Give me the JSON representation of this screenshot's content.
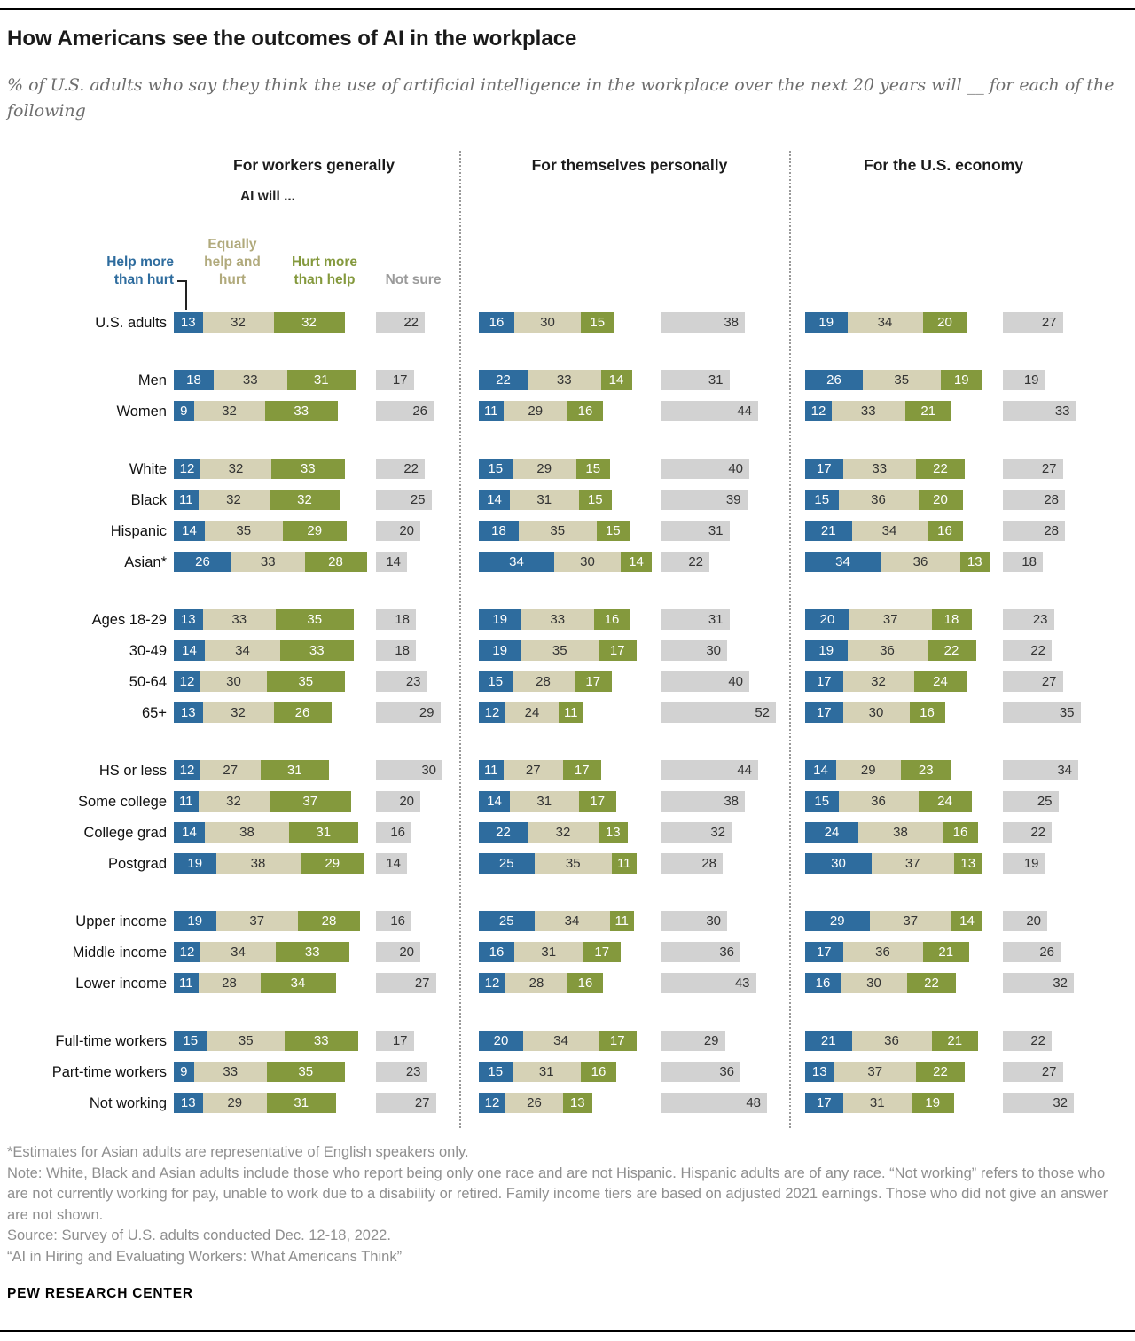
{
  "header": {
    "title": "How Americans see the outcomes of AI in the workplace",
    "subtitle": "% of U.S. adults who say they think the use of artificial intelligence in the workplace over the next 20 years will __ for each of the following"
  },
  "ai_will_label": "AI will ...",
  "legend": [
    {
      "text": "Help more\nthan hurt",
      "color": "#2e6c9e"
    },
    {
      "text": "Equally\nhelp and\nhurt",
      "color": "#b1aa7c"
    },
    {
      "text": "Hurt more\nthan help",
      "color": "#84993d"
    },
    {
      "text": "Not sure",
      "color": "#9a9a9a"
    }
  ],
  "chart_data": {
    "type": "bar",
    "stacked": true,
    "unit": "%",
    "series_labels": [
      "Help more than hurt",
      "Equally help and hurt",
      "Hurt more than help",
      "Not sure"
    ],
    "colors": [
      "#2e6c9e",
      "#d6d2b6",
      "#84993d",
      "#d2d2d2"
    ],
    "row_groups": [
      [
        "U.S. adults"
      ],
      [
        "Men",
        "Women"
      ],
      [
        "White",
        "Black",
        "Hispanic",
        "Asian*"
      ],
      [
        "Ages 18-29",
        "30-49",
        "50-64",
        "65+"
      ],
      [
        "HS or less",
        "Some college",
        "College grad",
        "Postgrad"
      ],
      [
        "Upper income",
        "Middle income",
        "Lower income"
      ],
      [
        "Full-time workers",
        "Part-time workers",
        "Not working"
      ]
    ],
    "panels": [
      {
        "title": "For workers generally",
        "values": [
          [
            13,
            32,
            32,
            22
          ],
          [
            18,
            33,
            31,
            17
          ],
          [
            9,
            32,
            33,
            26
          ],
          [
            12,
            32,
            33,
            22
          ],
          [
            11,
            32,
            32,
            25
          ],
          [
            14,
            35,
            29,
            20
          ],
          [
            26,
            33,
            28,
            14
          ],
          [
            13,
            33,
            35,
            18
          ],
          [
            14,
            34,
            33,
            18
          ],
          [
            12,
            30,
            35,
            23
          ],
          [
            13,
            32,
            26,
            29
          ],
          [
            12,
            27,
            31,
            30
          ],
          [
            11,
            32,
            37,
            20
          ],
          [
            14,
            38,
            31,
            16
          ],
          [
            19,
            38,
            29,
            14
          ],
          [
            19,
            37,
            28,
            16
          ],
          [
            12,
            34,
            33,
            20
          ],
          [
            11,
            28,
            34,
            27
          ],
          [
            15,
            35,
            33,
            17
          ],
          [
            9,
            33,
            35,
            23
          ],
          [
            13,
            29,
            31,
            27
          ]
        ]
      },
      {
        "title": "For themselves personally",
        "values": [
          [
            16,
            30,
            15,
            38
          ],
          [
            22,
            33,
            14,
            31
          ],
          [
            11,
            29,
            16,
            44
          ],
          [
            15,
            29,
            15,
            40
          ],
          [
            14,
            31,
            15,
            39
          ],
          [
            18,
            35,
            15,
            31
          ],
          [
            34,
            30,
            14,
            22
          ],
          [
            19,
            33,
            16,
            31
          ],
          [
            19,
            35,
            17,
            30
          ],
          [
            15,
            28,
            17,
            40
          ],
          [
            12,
            24,
            11,
            52
          ],
          [
            11,
            27,
            17,
            44
          ],
          [
            14,
            31,
            17,
            38
          ],
          [
            22,
            32,
            13,
            32
          ],
          [
            25,
            35,
            11,
            28
          ],
          [
            25,
            34,
            11,
            30
          ],
          [
            16,
            31,
            17,
            36
          ],
          [
            12,
            28,
            16,
            43
          ],
          [
            20,
            34,
            17,
            29
          ],
          [
            15,
            31,
            16,
            36
          ],
          [
            12,
            26,
            13,
            48
          ]
        ]
      },
      {
        "title": "For the U.S. economy",
        "values": [
          [
            19,
            34,
            20,
            27
          ],
          [
            26,
            35,
            19,
            19
          ],
          [
            12,
            33,
            21,
            33
          ],
          [
            17,
            33,
            22,
            27
          ],
          [
            15,
            36,
            20,
            28
          ],
          [
            21,
            34,
            16,
            28
          ],
          [
            34,
            36,
            13,
            18
          ],
          [
            20,
            37,
            18,
            23
          ],
          [
            19,
            36,
            22,
            22
          ],
          [
            17,
            32,
            24,
            27
          ],
          [
            17,
            30,
            16,
            35
          ],
          [
            14,
            29,
            23,
            34
          ],
          [
            15,
            36,
            24,
            25
          ],
          [
            24,
            38,
            16,
            22
          ],
          [
            30,
            37,
            13,
            19
          ],
          [
            29,
            37,
            14,
            20
          ],
          [
            17,
            36,
            21,
            26
          ],
          [
            16,
            30,
            22,
            32
          ],
          [
            21,
            36,
            21,
            22
          ],
          [
            13,
            37,
            22,
            27
          ],
          [
            17,
            31,
            19,
            32
          ]
        ]
      }
    ]
  },
  "footnotes": [
    "*Estimates for Asian adults are representative of English speakers only.",
    "Note: White, Black and Asian adults include those who report being only one race and are not Hispanic. Hispanic adults are of any race. “Not working” refers to those who are not currently working for pay, unable to work due to a disability or retired. Family income tiers are based on adjusted 2021 earnings. Those who did not give an answer are not shown.",
    "Source: Survey of U.S. adults conducted Dec. 12-18, 2022.",
    "“AI in Hiring and Evaluating Workers: What Americans Think”"
  ],
  "brand": "PEW RESEARCH CENTER"
}
